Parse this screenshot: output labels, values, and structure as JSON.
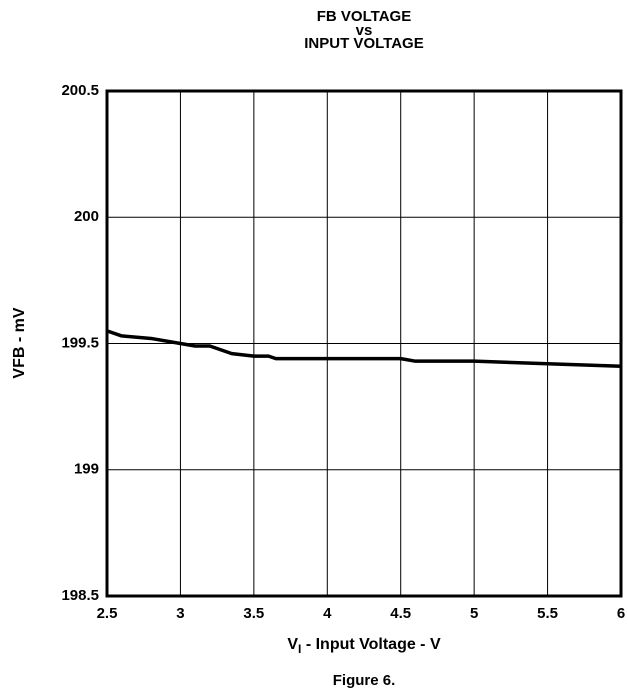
{
  "chart_data": {
    "type": "line",
    "title": [
      "FB VOLTAGE",
      "vs",
      "INPUT VOLTAGE"
    ],
    "x_label": [
      "V",
      "I",
      " - Input Voltage - V"
    ],
    "y_label": "VFB - mV",
    "caption": "Figure 6.",
    "x": [
      2.5,
      2.6,
      2.8,
      3.0,
      3.1,
      3.2,
      3.35,
      3.5,
      3.6,
      3.65,
      4.0,
      4.5,
      4.6,
      5.0,
      5.5,
      6.0
    ],
    "series": [
      {
        "name": "VFB",
        "color": "#000000",
        "values": [
          199.55,
          199.53,
          199.52,
          199.5,
          199.49,
          199.49,
          199.46,
          199.45,
          199.45,
          199.44,
          199.44,
          199.44,
          199.43,
          199.43,
          199.42,
          199.41
        ]
      }
    ],
    "xlim": [
      2.5,
      6
    ],
    "xticks": [
      2.5,
      3,
      3.5,
      4,
      4.5,
      5,
      5.5,
      6
    ],
    "ylim": [
      198.5,
      200.5
    ],
    "yticks": [
      198.5,
      199,
      199.5,
      200,
      200.5
    ],
    "grid": true
  }
}
